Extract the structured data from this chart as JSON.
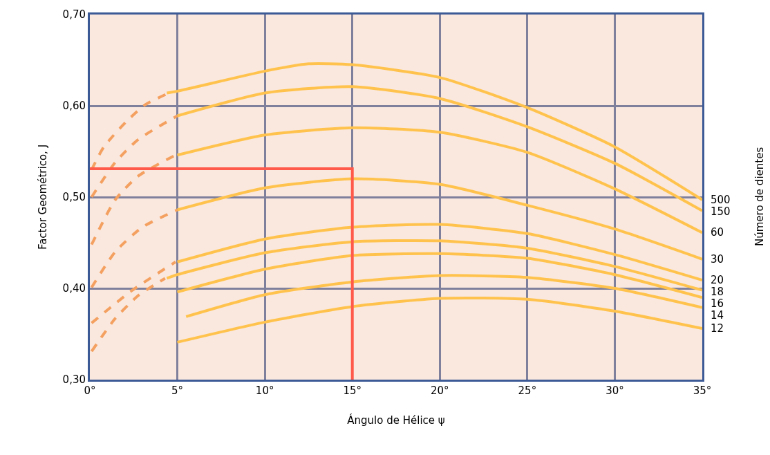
{
  "chart_data": {
    "type": "line",
    "xlabel": "Ángulo de Hélice ψ",
    "ylabel": "Factor Geométrico, J",
    "y2label": "Número de dientes",
    "xlim": [
      0,
      35
    ],
    "xticks": [
      {
        "value": 0,
        "label": "0°"
      },
      {
        "value": 5,
        "label": "5°"
      },
      {
        "value": 10,
        "label": "10°"
      },
      {
        "value": 15,
        "label": "15°"
      },
      {
        "value": 20,
        "label": "20°"
      },
      {
        "value": 25,
        "label": "25°"
      },
      {
        "value": 30,
        "label": "30°"
      },
      {
        "value": 35,
        "label": "35°"
      }
    ],
    "ylim": [
      0.3,
      0.7
    ],
    "yticks": [
      {
        "value": 0.3,
        "label": "0,30"
      },
      {
        "value": 0.4,
        "label": "0,40"
      },
      {
        "value": 0.5,
        "label": "0,50"
      },
      {
        "value": 0.6,
        "label": "0,60"
      },
      {
        "value": 0.7,
        "label": "0,70"
      }
    ],
    "grid": true,
    "legend": false,
    "marker": "none",
    "series": [
      {
        "name": "500",
        "color": "#ffc34d",
        "line_style": "solid",
        "x": [
          4.4,
          5,
          10,
          12.5,
          15,
          20,
          25,
          30,
          35
        ],
        "values": [
          0.614,
          0.616,
          0.638,
          0.646,
          0.645,
          0.631,
          0.598,
          0.555,
          0.497
        ]
      },
      {
        "name": "150",
        "color": "#ffc34d",
        "line_style": "solid",
        "x": [
          5,
          10,
          15,
          20,
          25,
          30,
          35
        ],
        "values": [
          0.589,
          0.614,
          0.621,
          0.608,
          0.577,
          0.537,
          0.485
        ]
      },
      {
        "name": "60",
        "color": "#ffc34d",
        "line_style": "solid",
        "x": [
          5,
          10,
          15,
          20,
          25,
          30,
          35
        ],
        "values": [
          0.546,
          0.568,
          0.576,
          0.571,
          0.549,
          0.509,
          0.461
        ]
      },
      {
        "name": "30",
        "color": "#ffc34d",
        "line_style": "solid",
        "x": [
          5,
          10,
          15,
          20,
          25,
          30,
          35
        ],
        "values": [
          0.486,
          0.51,
          0.52,
          0.514,
          0.491,
          0.465,
          0.432
        ]
      },
      {
        "name": "20",
        "color": "#ffc34d",
        "line_style": "solid",
        "x": [
          5,
          10,
          15,
          20,
          25,
          30,
          35
        ],
        "values": [
          0.429,
          0.454,
          0.467,
          0.47,
          0.46,
          0.437,
          0.409
        ]
      },
      {
        "name": "18",
        "color": "#ffc34d",
        "line_style": "solid",
        "x": [
          4.4,
          5,
          10,
          15,
          20,
          25,
          30,
          35
        ],
        "values": [
          0.411,
          0.415,
          0.439,
          0.451,
          0.452,
          0.444,
          0.424,
          0.398
        ]
      },
      {
        "name": "16",
        "color": "#ffc34d",
        "line_style": "solid",
        "x": [
          5,
          10,
          15,
          20,
          25,
          30,
          35
        ],
        "values": [
          0.396,
          0.421,
          0.436,
          0.438,
          0.433,
          0.415,
          0.39
        ]
      },
      {
        "name": "14",
        "color": "#ffc34d",
        "line_style": "solid",
        "x": [
          5.5,
          10,
          15,
          20,
          25,
          30,
          35
        ],
        "values": [
          0.369,
          0.393,
          0.407,
          0.414,
          0.412,
          0.4,
          0.379
        ]
      },
      {
        "name": "12",
        "color": "#ffc34d",
        "line_style": "solid",
        "x": [
          5,
          10,
          15,
          20,
          25,
          30,
          35
        ],
        "values": [
          0.341,
          0.363,
          0.38,
          0.389,
          0.388,
          0.375,
          0.356
        ]
      },
      {
        "color": "#f4a060",
        "line_style": "dashed",
        "x": [
          0.1,
          0.8,
          2.1,
          3.15,
          4.4
        ],
        "values": [
          0.53,
          0.555,
          0.583,
          0.601,
          0.613
        ]
      },
      {
        "color": "#f4a060",
        "line_style": "dashed",
        "x": [
          0.1,
          1.45,
          2.76,
          5
        ],
        "values": [
          0.5,
          0.538,
          0.563,
          0.589
        ]
      },
      {
        "color": "#f4a060",
        "line_style": "dashed",
        "x": [
          0.1,
          1.45,
          2.76,
          4.9
        ],
        "values": [
          0.448,
          0.497,
          0.523,
          0.546
        ]
      },
      {
        "color": "#f4a060",
        "line_style": "dashed",
        "x": [
          0.1,
          1.45,
          3.0,
          5
        ],
        "values": [
          0.401,
          0.44,
          0.467,
          0.486
        ]
      },
      {
        "color": "#f4a060",
        "line_style": "dashed",
        "x": [
          0.1,
          2.36,
          4.9
        ],
        "values": [
          0.362,
          0.397,
          0.429
        ]
      },
      {
        "color": "#f4a060",
        "line_style": "dashed",
        "x": [
          0.1,
          1.45,
          2.76,
          4.3
        ],
        "values": [
          0.331,
          0.367,
          0.392,
          0.411
        ]
      },
      {
        "color": "#ff5a4a",
        "line_style": "solid",
        "x": [
          0,
          15,
          15
        ],
        "values": [
          0.531,
          0.531,
          0.3
        ]
      }
    ]
  }
}
